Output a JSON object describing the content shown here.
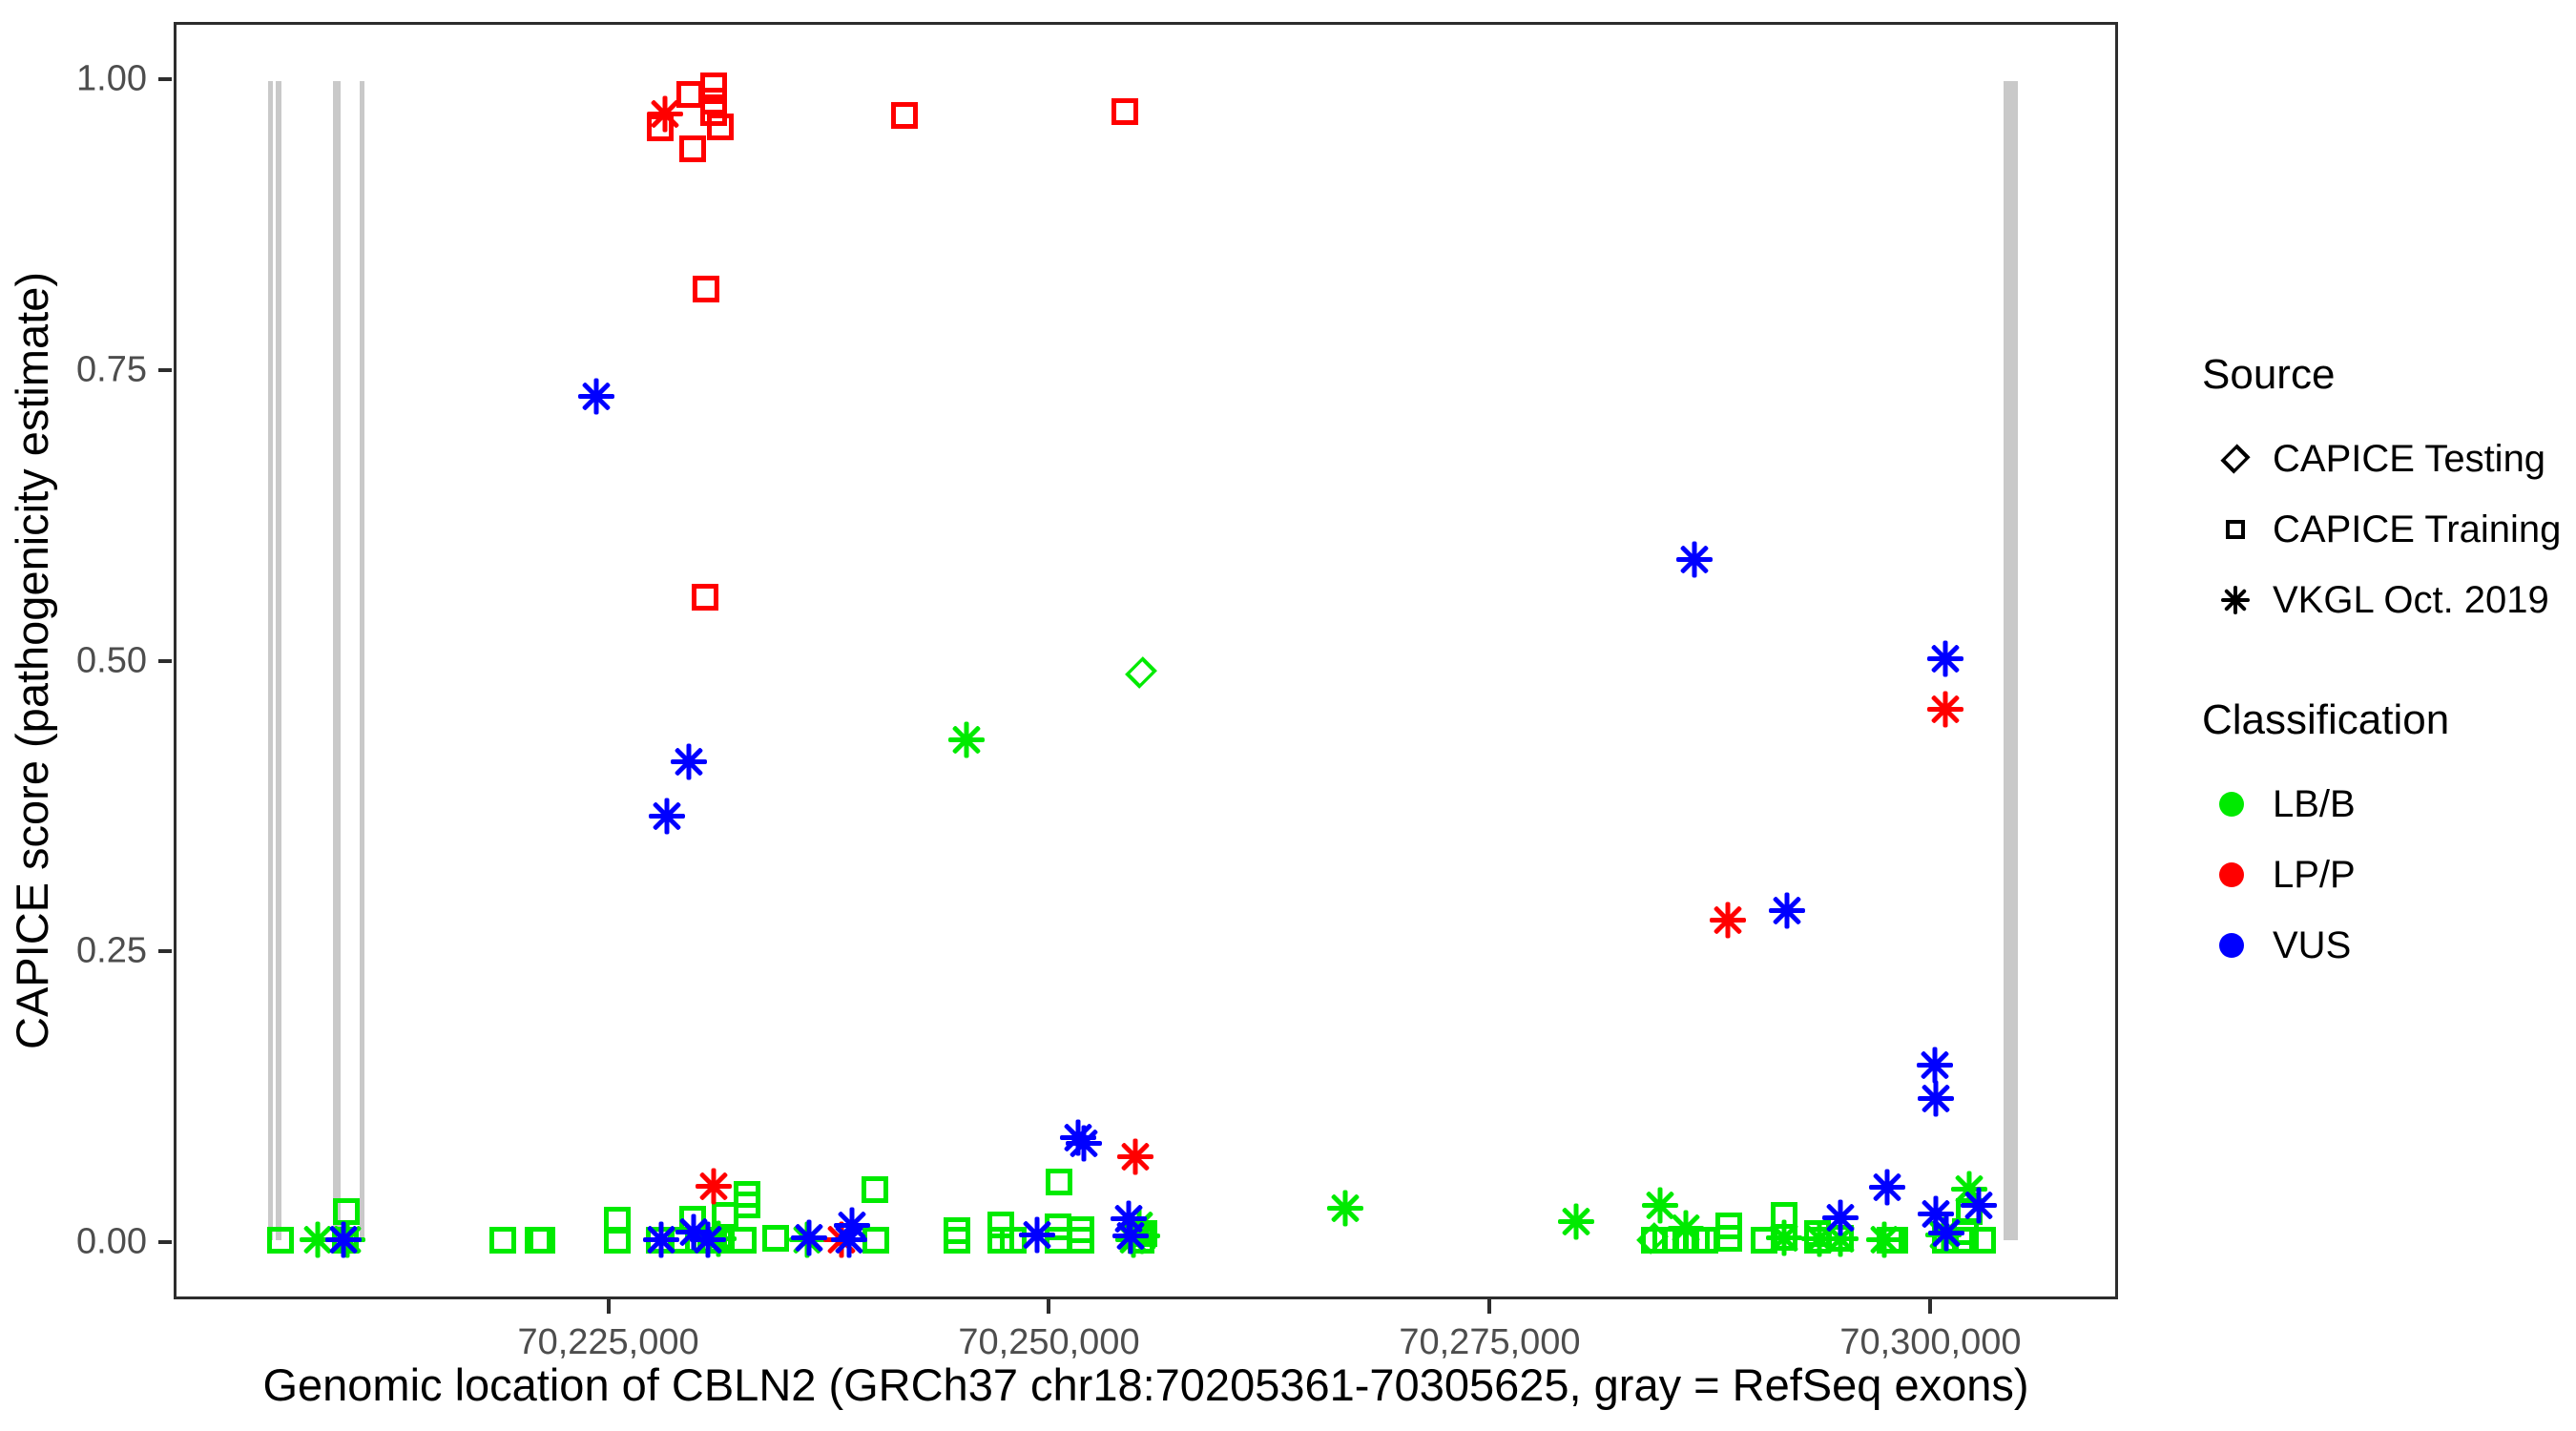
{
  "y_axis": {
    "label": "CAPICE score (pathogenicity estimate)",
    "ticks": [
      "1.00",
      "0.75",
      "0.50",
      "0.25",
      "0.00"
    ],
    "tick_values": [
      1.0,
      0.75,
      0.5,
      0.25,
      0.0
    ]
  },
  "x_axis": {
    "label": "Genomic location of CBLN2 (GRCh37 chr18:70205361-70305625, gray = RefSeq exons)",
    "ticks": [
      "70,225,000",
      "70,250,000",
      "70,275,000",
      "70,300,000"
    ],
    "tick_values": [
      70225000,
      70250000,
      70275000,
      70300000
    ]
  },
  "legend": {
    "source": {
      "title": "Source",
      "items": [
        {
          "label": "CAPICE Testing",
          "marker": "diamond"
        },
        {
          "label": "CAPICE Training",
          "marker": "square"
        },
        {
          "label": "VKGL Oct. 2019",
          "marker": "asterisk"
        }
      ]
    },
    "classification": {
      "title": "Classification",
      "items": [
        {
          "label": "LB/B",
          "color": "#00EA00"
        },
        {
          "label": "LP/P",
          "color": "#FF0000"
        },
        {
          "label": "VUS",
          "color": "#0000FF"
        }
      ]
    }
  },
  "chart_data": {
    "type": "scatter",
    "title": "",
    "xlabel": "Genomic location of CBLN2 (GRCh37 chr18:70205361-70305625, gray = RefSeq exons)",
    "ylabel": "CAPICE score (pathogenicity estimate)",
    "x_range": [
      70200348,
      70310638
    ],
    "y_range": [
      -0.049,
      1.049
    ],
    "grid": false,
    "legend_position": "right",
    "marker_codes": {
      "sq": "CAPICE Training (open square)",
      "dia": "CAPICE Testing (open diamond)",
      "ast": "VKGL Oct. 2019 (asterisk)"
    },
    "exon_color": "#C9C9C9",
    "exons": [
      [
        70205560,
        70205830
      ],
      [
        70205990,
        70206300
      ],
      [
        70209230,
        70209660
      ],
      [
        70210780,
        70210900
      ],
      [
        70304300,
        70305100
      ]
    ],
    "series": [
      {
        "name": "LB/B",
        "color": "#00EA00",
        "points": [
          [
            70206250,
            0.0,
            "sq"
          ],
          [
            70208380,
            0.0,
            "ast"
          ],
          [
            70209950,
            0.0,
            "sq"
          ],
          [
            70210080,
            0.0,
            "ast"
          ],
          [
            70210030,
            0.024,
            "sq"
          ],
          [
            70218920,
            0.0,
            "sq"
          ],
          [
            70220940,
            0.0,
            "sq"
          ],
          [
            70221150,
            0.0,
            "sq"
          ],
          [
            70225450,
            0.017,
            "sq"
          ],
          [
            70225450,
            0.0,
            "sq"
          ],
          [
            70227800,
            0.0,
            "sq"
          ],
          [
            70229180,
            0.0,
            "sq"
          ],
          [
            70229700,
            0.018,
            "sq"
          ],
          [
            70230020,
            0.0,
            "sq"
          ],
          [
            70230720,
            0.0,
            "sq"
          ],
          [
            70230930,
            0.0,
            "sq"
          ],
          [
            70231240,
            0.0,
            "sq"
          ],
          [
            70231180,
            0.001,
            "ast"
          ],
          [
            70231570,
            0.021,
            "sq"
          ],
          [
            70232580,
            0.0,
            "sq"
          ],
          [
            70232790,
            0.039,
            "sq"
          ],
          [
            70232790,
            0.03,
            "sq"
          ],
          [
            70234440,
            0.001,
            "sq"
          ],
          [
            70236250,
            0.0,
            "ast"
          ],
          [
            70240080,
            0.043,
            "sq"
          ],
          [
            70240140,
            0.0,
            "sq"
          ],
          [
            70244760,
            0.008,
            "sq"
          ],
          [
            70244760,
            0.0,
            "sq"
          ],
          [
            70245300,
            0.432,
            "ast"
          ],
          [
            70247260,
            0.013,
            "sq"
          ],
          [
            70247260,
            0.0,
            "sq"
          ],
          [
            70247950,
            0.0,
            "sq"
          ],
          [
            70250560,
            0.05,
            "sq"
          ],
          [
            70250500,
            0.011,
            "sq"
          ],
          [
            70250500,
            0.0,
            "sq"
          ],
          [
            70251780,
            0.009,
            "sq"
          ],
          [
            70251780,
            0.0,
            "sq"
          ],
          [
            70254800,
            0.0,
            "ast"
          ],
          [
            70255100,
            0.012,
            "ast"
          ],
          [
            70255300,
            0.003,
            "ast"
          ],
          [
            70255400,
            0.005,
            "sq"
          ],
          [
            70255200,
            0.0,
            "sq"
          ],
          [
            70255200,
            0.49,
            "dia"
          ],
          [
            70266840,
            0.027,
            "ast"
          ],
          [
            70279960,
            0.016,
            "ast"
          ],
          [
            70284300,
            0.001,
            "dia"
          ],
          [
            70284400,
            0.0,
            "sq"
          ],
          [
            70284750,
            0.03,
            "ast"
          ],
          [
            70285100,
            0.0,
            "sq"
          ],
          [
            70285600,
            0.0,
            "sq"
          ],
          [
            70286200,
            0.0,
            "sq"
          ],
          [
            70286200,
            0.01,
            "ast"
          ],
          [
            70286800,
            0.0,
            "sq"
          ],
          [
            70287300,
            0.0,
            "sq"
          ],
          [
            70288640,
            0.012,
            "sq"
          ],
          [
            70288640,
            0.001,
            "sq"
          ],
          [
            70290660,
            0.0,
            "sq"
          ],
          [
            70291830,
            0.021,
            "sq"
          ],
          [
            70291830,
            0.002,
            "sq"
          ],
          [
            70291830,
            0.002,
            "ast"
          ],
          [
            70293690,
            0.005,
            "sq"
          ],
          [
            70293690,
            0.0,
            "sq"
          ],
          [
            70293800,
            0.001,
            "ast"
          ],
          [
            70295020,
            0.001,
            "sq"
          ],
          [
            70295020,
            0.001,
            "ast"
          ],
          [
            70297520,
            0.0,
            "ast"
          ],
          [
            70297840,
            0.0,
            "sq"
          ],
          [
            70298100,
            0.0,
            "sq"
          ],
          [
            70300870,
            0.004,
            "ast"
          ],
          [
            70301000,
            0.0,
            "sq"
          ],
          [
            70302100,
            0.007,
            "sq"
          ],
          [
            70302100,
            0.0,
            "sq"
          ],
          [
            70302310,
            0.044,
            "ast"
          ],
          [
            70302360,
            0.024,
            "sq"
          ],
          [
            70303100,
            0.0,
            "sq"
          ]
        ]
      },
      {
        "name": "LP/P",
        "color": "#FF0000",
        "points": [
          [
            70227845,
            0.96,
            "sq"
          ],
          [
            70228120,
            0.972,
            "ast"
          ],
          [
            70229550,
            0.989,
            "sq"
          ],
          [
            70229700,
            0.942,
            "sq"
          ],
          [
            70230930,
            0.996,
            "sq"
          ],
          [
            70230930,
            0.983,
            "sq"
          ],
          [
            70230930,
            0.973,
            "sq"
          ],
          [
            70231300,
            0.961,
            "sq"
          ],
          [
            70230450,
            0.821,
            "sq"
          ],
          [
            70230400,
            0.555,
            "sq"
          ],
          [
            70230900,
            0.046,
            "ast"
          ],
          [
            70238200,
            0.0,
            "ast"
          ],
          [
            70241780,
            0.971,
            "sq"
          ],
          [
            70254280,
            0.974,
            "sq"
          ],
          [
            70254900,
            0.072,
            "ast"
          ],
          [
            70288600,
            0.276,
            "ast"
          ],
          [
            70300980,
            0.458,
            "ast"
          ]
        ]
      },
      {
        "name": "VUS",
        "color": "#0000FF",
        "points": [
          [
            70209870,
            0.0,
            "ast"
          ],
          [
            70224230,
            0.728,
            "ast"
          ],
          [
            70227900,
            0.0,
            "ast"
          ],
          [
            70228220,
            0.366,
            "ast"
          ],
          [
            70229520,
            0.413,
            "ast"
          ],
          [
            70229750,
            0.007,
            "ast"
          ],
          [
            70230600,
            0.0,
            "ast"
          ],
          [
            70236350,
            0.002,
            "ast"
          ],
          [
            70238600,
            0.0,
            "ast"
          ],
          [
            70238800,
            0.012,
            "ast"
          ],
          [
            70249300,
            0.004,
            "ast"
          ],
          [
            70251650,
            0.088,
            "ast"
          ],
          [
            70251950,
            0.083,
            "ast"
          ],
          [
            70254500,
            0.018,
            "ast"
          ],
          [
            70254600,
            0.003,
            "ast"
          ],
          [
            70286680,
            0.587,
            "ast"
          ],
          [
            70291940,
            0.284,
            "ast"
          ],
          [
            70295020,
            0.019,
            "ast"
          ],
          [
            70297680,
            0.045,
            "ast"
          ],
          [
            70300390,
            0.151,
            "ast"
          ],
          [
            70300440,
            0.122,
            "ast"
          ],
          [
            70300440,
            0.022,
            "ast"
          ],
          [
            70300980,
            0.502,
            "ast"
          ],
          [
            70301030,
            0.006,
            "ast"
          ],
          [
            70302890,
            0.03,
            "ast"
          ]
        ]
      }
    ]
  }
}
